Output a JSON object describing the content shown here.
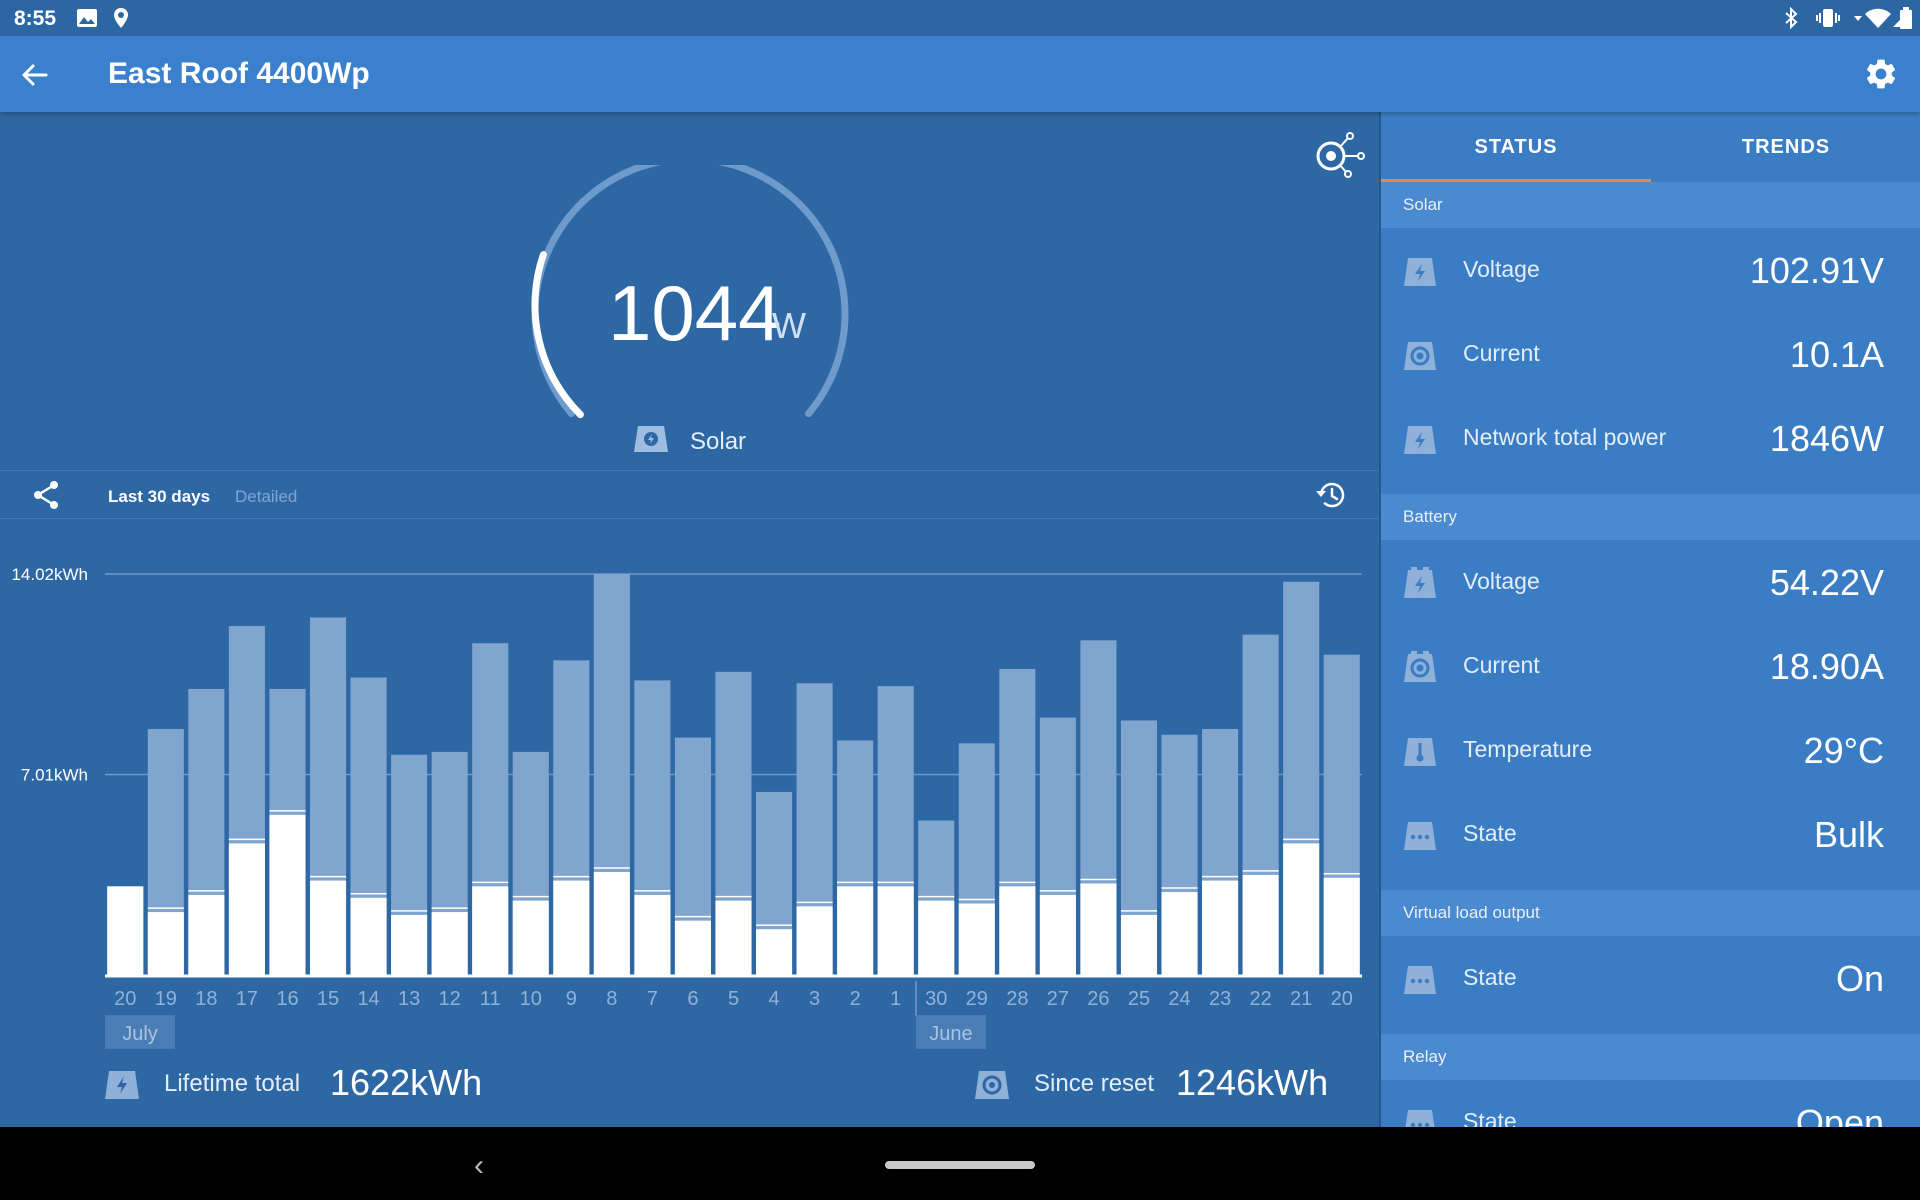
{
  "statusbar": {
    "time": "8:55"
  },
  "appbar": {
    "title": "East Roof 4400Wp"
  },
  "gauge": {
    "value": "1044",
    "unit": "W",
    "label": "Solar",
    "fraction": 0.237
  },
  "chart_controls": {
    "range": "Last 30 days",
    "detailed": "Detailed"
  },
  "chart_data": {
    "type": "bar",
    "ylabels": [
      "14.02kWh",
      "7.01kWh"
    ],
    "ylim": [
      0,
      14.02
    ],
    "categories": [
      "20",
      "19",
      "18",
      "17",
      "16",
      "15",
      "14",
      "13",
      "12",
      "11",
      "10",
      "9",
      "8",
      "7",
      "6",
      "5",
      "4",
      "3",
      "2",
      "1",
      "30",
      "29",
      "28",
      "27",
      "26",
      "25",
      "24",
      "23",
      "22",
      "21",
      "20"
    ],
    "month_labels": [
      "July",
      "June"
    ],
    "series": [
      {
        "values": [
          3.1,
          2.2,
          2.8,
          4.6,
          5.6,
          3.3,
          2.7,
          2.1,
          2.2,
          3.1,
          2.6,
          3.3,
          3.6,
          2.8,
          1.9,
          2.6,
          1.6,
          2.4,
          3.1,
          3.1,
          2.6,
          2.5,
          3.1,
          2.8,
          3.2,
          2.1,
          2.9,
          3.3,
          3.5,
          4.6,
          3.4
        ]
      },
      {
        "values": [
          3.1,
          8.6,
          10.0,
          12.2,
          10.0,
          12.5,
          10.4,
          7.7,
          7.8,
          11.6,
          7.8,
          11.0,
          14.02,
          10.3,
          8.3,
          10.6,
          6.4,
          10.2,
          8.2,
          10.1,
          5.4,
          8.1,
          10.7,
          9.0,
          11.7,
          8.9,
          8.4,
          8.6,
          11.9,
          13.75,
          11.2
        ]
      }
    ],
    "colors": {
      "yield": "#ffffff",
      "remainder": "#80a5cf"
    }
  },
  "footer": {
    "lifetime_label": "Lifetime total",
    "lifetime_value": "1622kWh",
    "reset_label": "Since reset",
    "reset_value": "1246kWh"
  },
  "tabs": [
    {
      "label": "STATUS"
    },
    {
      "label": "TRENDS"
    }
  ],
  "sections": {
    "solar": {
      "title": "Solar",
      "rows": [
        {
          "label": "Voltage",
          "value": "102.91V",
          "icon": "bolt-icon"
        },
        {
          "label": "Current",
          "value": "10.1A",
          "icon": "current-icon"
        },
        {
          "label": "Network total power",
          "value": "1846W",
          "icon": "bolt-icon"
        }
      ]
    },
    "battery": {
      "title": "Battery",
      "rows": [
        {
          "label": "Voltage",
          "value": "54.22V",
          "icon": "battery-bolt-icon"
        },
        {
          "label": "Current",
          "value": "18.90A",
          "icon": "battery-current-icon"
        },
        {
          "label": "Temperature",
          "value": "29°C",
          "icon": "thermometer-icon"
        },
        {
          "label": "State",
          "value": "Bulk",
          "icon": "dots-icon"
        }
      ]
    },
    "vlo": {
      "title": "Virtual load output",
      "rows": [
        {
          "label": "State",
          "value": "On",
          "icon": "dots-icon"
        }
      ]
    },
    "relay": {
      "title": "Relay",
      "rows": [
        {
          "label": "State",
          "value": "Open",
          "icon": "dots-icon"
        }
      ]
    }
  }
}
